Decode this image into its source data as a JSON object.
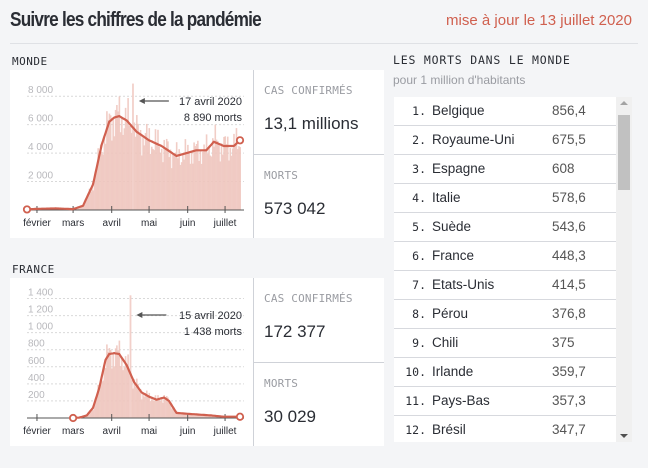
{
  "header": {
    "title": "Suivre les chiffres de la pandémie",
    "updated": "mise à jour le 13 juillet 2020"
  },
  "colors": {
    "accent": "#d0604f",
    "bar": "#efc4bc",
    "text": "#2a2d34",
    "muted": "#9a9ca2"
  },
  "monde": {
    "label": "MONDE",
    "cases_label": "CAS CONFIRMÉS",
    "cases_value": "13,1 millions",
    "deaths_label": "MORTS",
    "deaths_value": "573 042"
  },
  "france": {
    "label": "FRANCE",
    "cases_label": "CAS CONFIRMÉS",
    "cases_value": "172 377",
    "deaths_label": "MORTS",
    "deaths_value": "30 029"
  },
  "ranking": {
    "title": "LES MORTS DANS LE MONDE",
    "subtitle": "pour 1 million d'habitants",
    "rows": [
      {
        "rank": "1.",
        "country": "Belgique",
        "value": "856,4"
      },
      {
        "rank": "2.",
        "country": "Royaume-Uni",
        "value": "675,5"
      },
      {
        "rank": "3.",
        "country": "Espagne",
        "value": "608"
      },
      {
        "rank": "4.",
        "country": "Italie",
        "value": "578,6"
      },
      {
        "rank": "5.",
        "country": "Suède",
        "value": "543,6"
      },
      {
        "rank": "6.",
        "country": "France",
        "value": "448,3"
      },
      {
        "rank": "7.",
        "country": "Etats-Unis",
        "value": "414,5"
      },
      {
        "rank": "8.",
        "country": "Pérou",
        "value": "376,8"
      },
      {
        "rank": "9.",
        "country": "Chili",
        "value": "375"
      },
      {
        "rank": "10.",
        "country": "Irlande",
        "value": "359,7"
      },
      {
        "rank": "11.",
        "country": "Pays-Bas",
        "value": "357,3"
      },
      {
        "rank": "12.",
        "country": "Brésil",
        "value": "347,7"
      }
    ]
  },
  "chart_data": [
    {
      "type": "area",
      "title": "MONDE",
      "xlabel": "",
      "ylabel": "",
      "x_ticks": [
        "février",
        "mars",
        "avril",
        "mai",
        "juin",
        "juillet"
      ],
      "y_ticks": [
        "2 000",
        "4 000",
        "6 000",
        "8 000"
      ],
      "y_tick_values": [
        2000,
        4000,
        6000,
        8000
      ],
      "ylim": [
        0,
        9000
      ],
      "xlim_days": [
        -8,
        163
      ],
      "grid": true,
      "series_line_7day_avg": {
        "days": [
          -8,
          0,
          15,
          29,
          37,
          45,
          52,
          58,
          62,
          66,
          72,
          80,
          90,
          100,
          112,
          120,
          128,
          136,
          142,
          150,
          158,
          163
        ],
        "values": [
          40,
          80,
          110,
          60,
          300,
          1800,
          4600,
          6200,
          6500,
          6600,
          6300,
          5500,
          4900,
          4500,
          3800,
          4000,
          4200,
          4200,
          4800,
          4500,
          4500,
          4900
        ]
      },
      "annotation": {
        "date": "17 avril 2020",
        "text": "8 890 morts",
        "day": 77,
        "value": 8890
      }
    },
    {
      "type": "area",
      "title": "FRANCE",
      "xlabel": "",
      "ylabel": "",
      "x_ticks": [
        "février",
        "mars",
        "avril",
        "mai",
        "juin",
        "juillet"
      ],
      "y_ticks": [
        "200",
        "400",
        "600",
        "800",
        "1 000",
        "1 200",
        "1 400"
      ],
      "y_tick_values": [
        200,
        400,
        600,
        800,
        1000,
        1200,
        1400
      ],
      "ylim": [
        0,
        1500
      ],
      "xlim_days": [
        -8,
        163
      ],
      "grid": true,
      "series_line_7day_avg": {
        "days": [
          29,
          34,
          40,
          45,
          50,
          55,
          58,
          62,
          66,
          72,
          78,
          84,
          90,
          96,
          102,
          106,
          112,
          120,
          130,
          140,
          150,
          163
        ],
        "values": [
          0,
          5,
          30,
          120,
          350,
          680,
          750,
          760,
          750,
          620,
          420,
          300,
          250,
          215,
          240,
          200,
          60,
          50,
          40,
          30,
          15,
          15
        ]
      },
      "annotation": {
        "date": "15 avril 2020",
        "text": "1 438 morts",
        "day": 75,
        "value": 1438
      }
    }
  ]
}
